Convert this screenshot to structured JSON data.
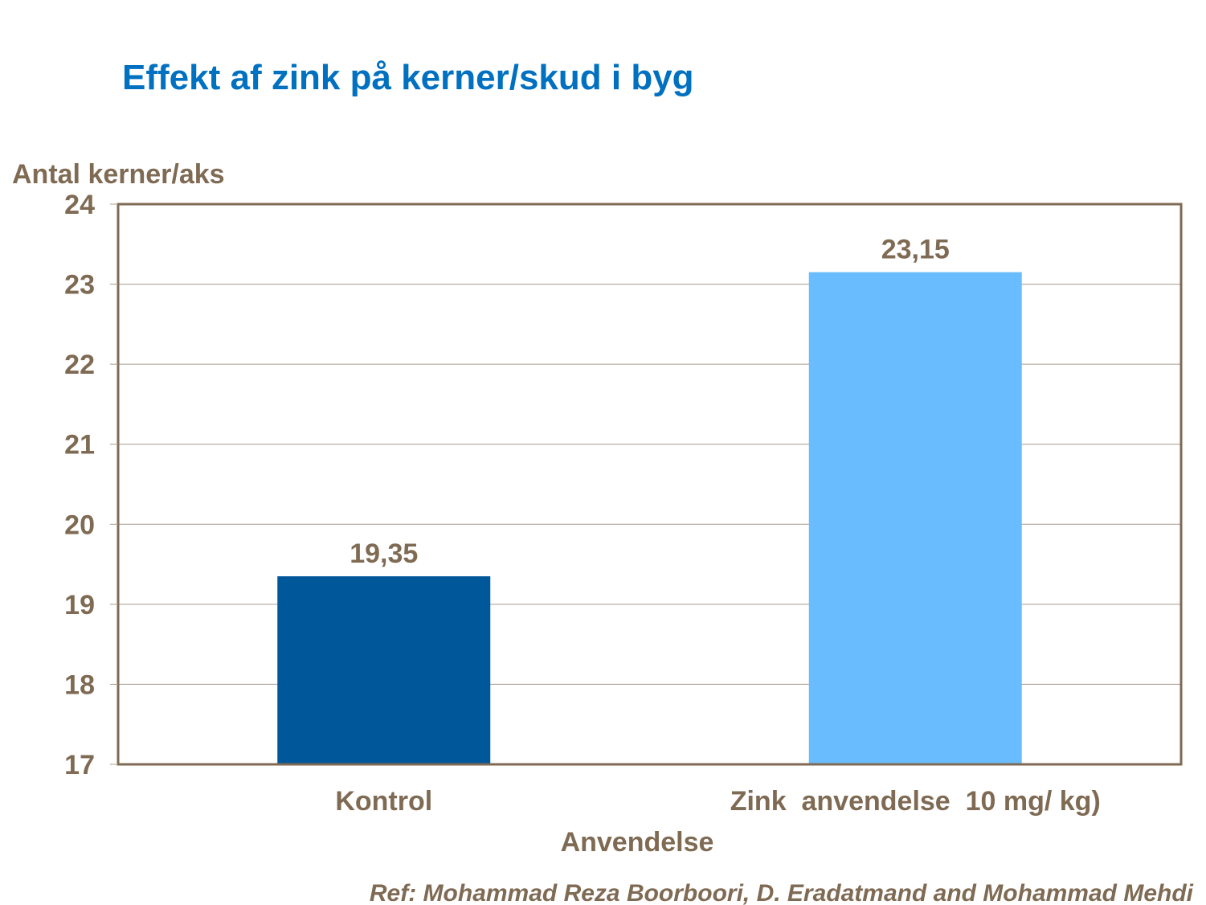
{
  "chart_data": {
    "type": "bar",
    "title": "Effekt af zink på kerner/skud i byg",
    "ylabel": "Antal kerner/aks",
    "xlabel": "Anvendelse",
    "categories": [
      "Kontrol",
      "Zink  anvendelse  10 mg/ kg)"
    ],
    "values": [
      19.35,
      23.15
    ],
    "data_labels": [
      "19,35",
      "23,15"
    ],
    "bar_colors": [
      "#00589b",
      "#69bdff"
    ],
    "ylim": [
      17,
      24
    ],
    "yticks": [
      17,
      18,
      19,
      20,
      21,
      22,
      23,
      24
    ],
    "grid": true,
    "legend": "none",
    "reference": "Ref: Mohammad Reza Boorboori, D. Eradatmand and Mohammad Mehdi"
  },
  "colors": {
    "title": "#0070c0",
    "text": "#7f6a53",
    "axis": "#7f6a53",
    "grid": "#a89c8e"
  }
}
